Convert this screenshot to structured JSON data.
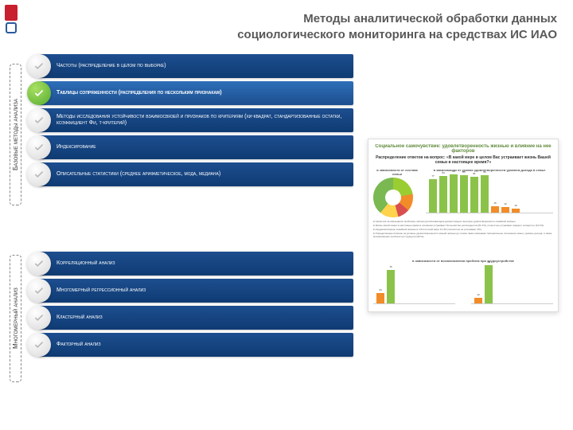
{
  "title": {
    "line1": "Методы аналитической обработки данных",
    "line2": "социологического мониторинга на средствах ИС ИАО"
  },
  "sections": {
    "basic_label": "Базовые методы анализа",
    "multi_label": "Многомерный анализ"
  },
  "basic_items": [
    {
      "label": "Частоты (распределение в целом по выборке)",
      "active": false
    },
    {
      "label": "Таблицы сопряженности (распределения по нескольким признакам)",
      "active": true
    },
    {
      "label": "Методы исследования устойчивости взаимосвязей и признаков по критериям (хи-квадрат, стандартизованные остатки, коэффициент Фи, т-критерий)",
      "active": false
    },
    {
      "label": "Индексирование",
      "active": false
    },
    {
      "label": "Описательные статистики (среднее арифметическое, мода, медиана)",
      "active": false
    }
  ],
  "multi_items": [
    {
      "label": "Корреляционный анализ"
    },
    {
      "label": "Многомерный регрессионный анализ"
    },
    {
      "label": "Кластерный анализ"
    },
    {
      "label": "Факторный анализ"
    }
  ],
  "preview": {
    "header": "Социальное самочувствие: удовлетворенность жизнью и влияние на нее факторов",
    "subheader": "Распределение ответов на вопрос: «В какой мере в целом Вас устраивает жизнь Вашей семьи в настоящее время?»",
    "pie_caption": "в зависимости от состава семьи",
    "bars1_caption": "в зависимости от уровня удовлетворенности уровнем дохода в семье",
    "bars2_caption": "в зависимости от возникновения проблем при трудоустройстве",
    "bars1": [
      {
        "v": 77,
        "c": "g"
      },
      {
        "v": 84,
        "c": "g"
      },
      {
        "v": 88,
        "c": "g"
      },
      {
        "v": 85,
        "c": "g"
      },
      {
        "v": 81,
        "c": "g"
      },
      {
        "v": 85,
        "c": "g"
      },
      {
        "v": 15,
        "c": "o"
      },
      {
        "v": 12,
        "c": "o"
      },
      {
        "v": 10,
        "c": "o"
      }
    ],
    "bars2_left": [
      {
        "v": 24,
        "c": "o"
      },
      {
        "v": 76,
        "c": "g"
      }
    ],
    "bars2_right": [
      {
        "v": 12,
        "c": "o"
      },
      {
        "v": 88,
        "c": "g"
      }
    ],
    "colors": {
      "bar_blue": "#1d4e8f",
      "bar_blue_active": "#2e6fb8",
      "green": "#56ab2f",
      "chart_green": "#8bc34a",
      "chart_orange": "#f28c28"
    }
  }
}
